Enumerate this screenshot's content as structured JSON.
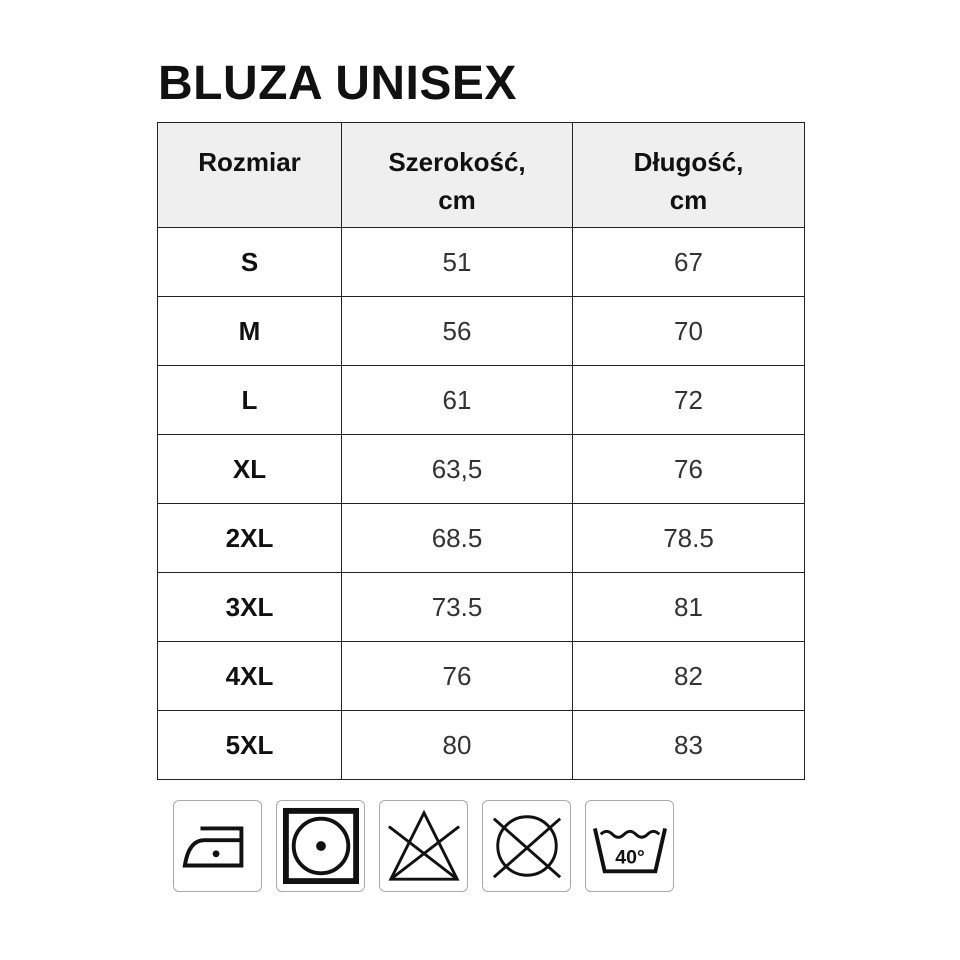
{
  "title": "BLUZA UNISEX",
  "table": {
    "headers": [
      "Rozmiar",
      "Szerokość, cm",
      "Długość, cm"
    ],
    "rows": [
      [
        "S",
        "51",
        "67"
      ],
      [
        "M",
        "56",
        "70"
      ],
      [
        "L",
        "61",
        "72"
      ],
      [
        "XL",
        "63,5",
        "76"
      ],
      [
        "2XL",
        "68.5",
        "78.5"
      ],
      [
        "3XL",
        "73.5",
        "81"
      ],
      [
        "4XL",
        "76",
        "82"
      ],
      [
        "5XL",
        "80",
        "83"
      ]
    ]
  },
  "care_icons": [
    {
      "name": "iron-low-heat-icon"
    },
    {
      "name": "tumble-dry-icon"
    },
    {
      "name": "do-not-bleach-icon"
    },
    {
      "name": "do-not-dry-clean-icon"
    },
    {
      "name": "wash-40-icon",
      "label": "40°"
    }
  ]
}
